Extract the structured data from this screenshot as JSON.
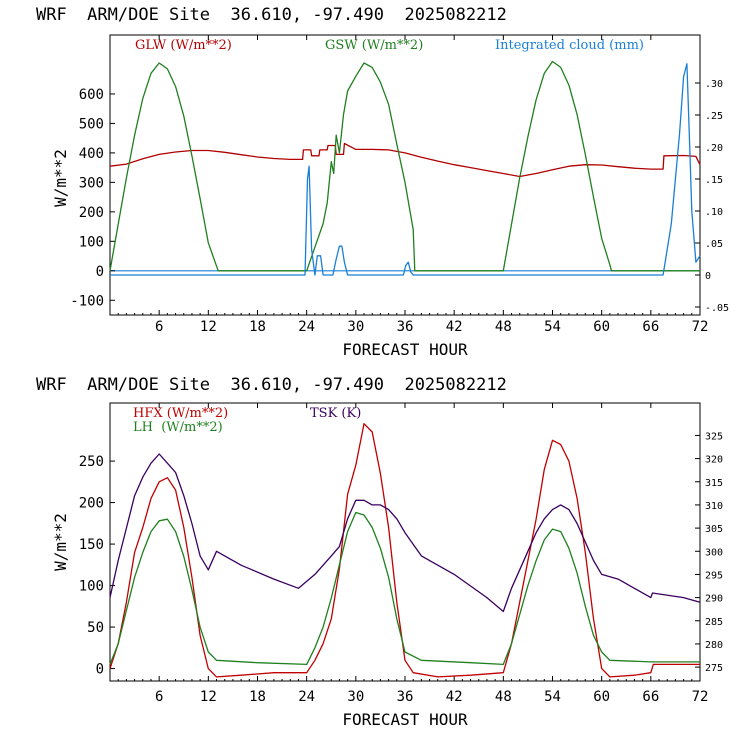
{
  "chart_data": [
    {
      "type": "line",
      "title": "WRF  ARM/DOE Site  36.610, -97.490  2025082212",
      "xlabel": "FORECAST HOUR",
      "ylabel": "W/m**2",
      "xlim": [
        0,
        72
      ],
      "ylim": [
        -150,
        800
      ],
      "xticks": [
        6,
        12,
        18,
        24,
        30,
        36,
        42,
        48,
        54,
        60,
        66,
        72
      ],
      "yticks": [
        -100,
        0,
        100,
        200,
        300,
        400,
        500,
        600
      ],
      "y2lim": [
        -0.0625,
        0.375
      ],
      "y2ticks": [
        -0.05,
        0,
        0.05,
        0.1,
        0.15,
        0.2,
        0.25,
        0.3
      ],
      "y2ticklabels": [
        "-.05",
        "0",
        ".05",
        ".10",
        ".15",
        ".20",
        ".25",
        ".30"
      ],
      "grid": false,
      "legend_position": "top",
      "colors": {
        "GLW": "#b00000",
        "GSW": "#208020",
        "CLOUD": "#1a7fd6"
      },
      "series": [
        {
          "name": "GLW (W/m**2)",
          "axis": "left",
          "color": "#b00000",
          "x": [
            0,
            2,
            4,
            6,
            8,
            10,
            12,
            14,
            16,
            18,
            20,
            22,
            23.5,
            23.6,
            24.5,
            24.6,
            25.5,
            25.6,
            26.5,
            26.6,
            27.5,
            27.6,
            28.5,
            28.6,
            30,
            32,
            34,
            35,
            36,
            38,
            40,
            42,
            44,
            46,
            48,
            50,
            52,
            54,
            56,
            58,
            60,
            62,
            64,
            66,
            67.5,
            67.6,
            70,
            71.5,
            72
          ],
          "y": [
            355,
            362,
            380,
            395,
            403,
            408,
            408,
            402,
            394,
            386,
            381,
            378,
            378,
            410,
            410,
            390,
            390,
            410,
            410,
            425,
            425,
            395,
            395,
            432,
            412,
            412,
            410,
            405,
            400,
            385,
            372,
            360,
            350,
            340,
            330,
            320,
            330,
            343,
            355,
            360,
            359,
            353,
            348,
            345,
            345,
            390,
            391,
            388,
            360
          ]
        },
        {
          "name": "GSW (W/m**2)",
          "axis": "left",
          "color": "#208020",
          "x": [
            0,
            1,
            2,
            3,
            4,
            5,
            6,
            7,
            8,
            9,
            10,
            11,
            12,
            13.2,
            24,
            25,
            26,
            26.5,
            27,
            27.3,
            27.6,
            28,
            28.5,
            29,
            30,
            31,
            32,
            33,
            34,
            35,
            36,
            37,
            37.2,
            48,
            49,
            50,
            51,
            52,
            53,
            54,
            55,
            56,
            57,
            58,
            59,
            60,
            61,
            61.2,
            72
          ],
          "y": [
            0,
            158,
            315,
            460,
            585,
            670,
            705,
            685,
            625,
            525,
            390,
            245,
            95,
            0,
            0,
            80,
            160,
            230,
            370,
            330,
            460,
            400,
            530,
            610,
            660,
            705,
            690,
            640,
            565,
            430,
            300,
            140,
            0,
            0,
            158,
            315,
            455,
            580,
            670,
            710,
            690,
            630,
            530,
            395,
            250,
            110,
            20,
            0,
            0
          ]
        },
        {
          "name": "Integrated cloud (mm)",
          "axis": "right",
          "color": "#1a7fd6",
          "x": [
            0,
            23.8,
            24.1,
            24.3,
            24.6,
            25,
            25.3,
            25.7,
            26,
            26.3,
            27.2,
            27.6,
            28,
            28.3,
            28.6,
            29,
            35.8,
            36.1,
            36.4,
            36.7,
            37,
            67.5,
            68.5,
            69.5,
            70,
            70.4,
            70.7,
            71,
            71.5,
            72
          ],
          "y": [
            0,
            0,
            0.15,
            0.17,
            0.04,
            0,
            0.03,
            0.03,
            0,
            0,
            0,
            0.025,
            0.045,
            0.045,
            0.02,
            0,
            0,
            0.015,
            0.02,
            0.005,
            0,
            0,
            0.08,
            0.22,
            0.31,
            0.33,
            0.22,
            0.1,
            0.02,
            0.03
          ]
        }
      ]
    },
    {
      "type": "line",
      "title": "WRF  ARM/DOE Site  36.610, -97.490  2025082212",
      "xlabel": "FORECAST HOUR",
      "ylabel": "W/m**2",
      "xlim": [
        0,
        72
      ],
      "ylim": [
        -15,
        320
      ],
      "xticks": [
        6,
        12,
        18,
        24,
        30,
        36,
        42,
        48,
        54,
        60,
        66,
        72
      ],
      "yticks": [
        0,
        50,
        100,
        150,
        200,
        250
      ],
      "y2lim": [
        272,
        332
      ],
      "y2ticks": [
        275,
        280,
        285,
        290,
        295,
        300,
        305,
        310,
        315,
        320,
        325
      ],
      "grid": false,
      "legend_position": "top",
      "colors": {
        "HFX": "#c00000",
        "LH": "#208020",
        "TSK": "#3a0060"
      },
      "series": [
        {
          "name": "HFX (W/m**2)",
          "axis": "left",
          "color": "#c00000",
          "x": [
            0,
            1,
            2,
            3,
            4,
            5,
            6,
            7,
            8,
            9,
            10,
            11,
            12,
            13,
            16,
            20,
            24,
            25,
            26,
            27,
            28,
            29,
            30,
            31,
            32,
            33,
            34,
            35,
            36,
            37,
            40,
            44,
            48,
            49,
            50,
            51,
            52,
            53,
            54,
            55,
            56,
            57,
            58,
            59,
            60,
            61,
            64,
            66,
            66.3,
            70,
            72
          ],
          "y": [
            0,
            30,
            80,
            140,
            170,
            205,
            225,
            230,
            215,
            170,
            110,
            40,
            0,
            -10,
            -8,
            -5,
            -5,
            10,
            30,
            60,
            120,
            210,
            245,
            295,
            285,
            235,
            170,
            80,
            10,
            -5,
            -10,
            -8,
            -5,
            30,
            80,
            130,
            180,
            240,
            275,
            270,
            250,
            205,
            140,
            60,
            0,
            -10,
            -8,
            -5,
            5,
            5,
            5
          ]
        },
        {
          "name": "LH  (W/m**2)",
          "axis": "left",
          "color": "#208020",
          "x": [
            0,
            1,
            2,
            3,
            4,
            5,
            6,
            7,
            8,
            9,
            10,
            11,
            12,
            13,
            18,
            24,
            25,
            26,
            27,
            28,
            29,
            30,
            31,
            32,
            33,
            34,
            35,
            36,
            38,
            44,
            48,
            49,
            50,
            51,
            52,
            53,
            54,
            55,
            56,
            57,
            58,
            59,
            60,
            61,
            66,
            72
          ],
          "y": [
            5,
            30,
            70,
            110,
            140,
            165,
            178,
            180,
            165,
            135,
            95,
            50,
            20,
            10,
            7,
            5,
            25,
            50,
            85,
            125,
            165,
            188,
            185,
            170,
            145,
            110,
            60,
            20,
            10,
            7,
            5,
            30,
            65,
            100,
            130,
            155,
            168,
            165,
            145,
            115,
            75,
            40,
            20,
            10,
            8,
            8
          ]
        },
        {
          "name": "TSK (K)",
          "axis": "right",
          "color": "#3a0060",
          "x": [
            0,
            1,
            2,
            3,
            4,
            5,
            6,
            7,
            8,
            9,
            10,
            11,
            12,
            13,
            16,
            20,
            23,
            25,
            27,
            28,
            29,
            30,
            31,
            32,
            33,
            34,
            35,
            36,
            38,
            42,
            46,
            48,
            49,
            50,
            51,
            52,
            53,
            54,
            55,
            56,
            57,
            58,
            59,
            60,
            62,
            66,
            66.2,
            70,
            72
          ],
          "y": [
            290,
            298,
            305,
            312,
            316,
            319,
            321,
            319,
            317,
            312,
            306,
            299,
            296,
            300,
            297,
            294,
            292,
            295,
            299,
            301,
            307,
            311,
            311,
            310,
            310,
            309,
            307,
            304,
            299,
            295,
            290,
            287,
            292,
            296,
            300,
            304,
            307,
            309,
            310,
            309,
            306,
            302,
            298,
            295,
            294,
            290,
            291,
            290,
            289
          ]
        }
      ]
    }
  ]
}
